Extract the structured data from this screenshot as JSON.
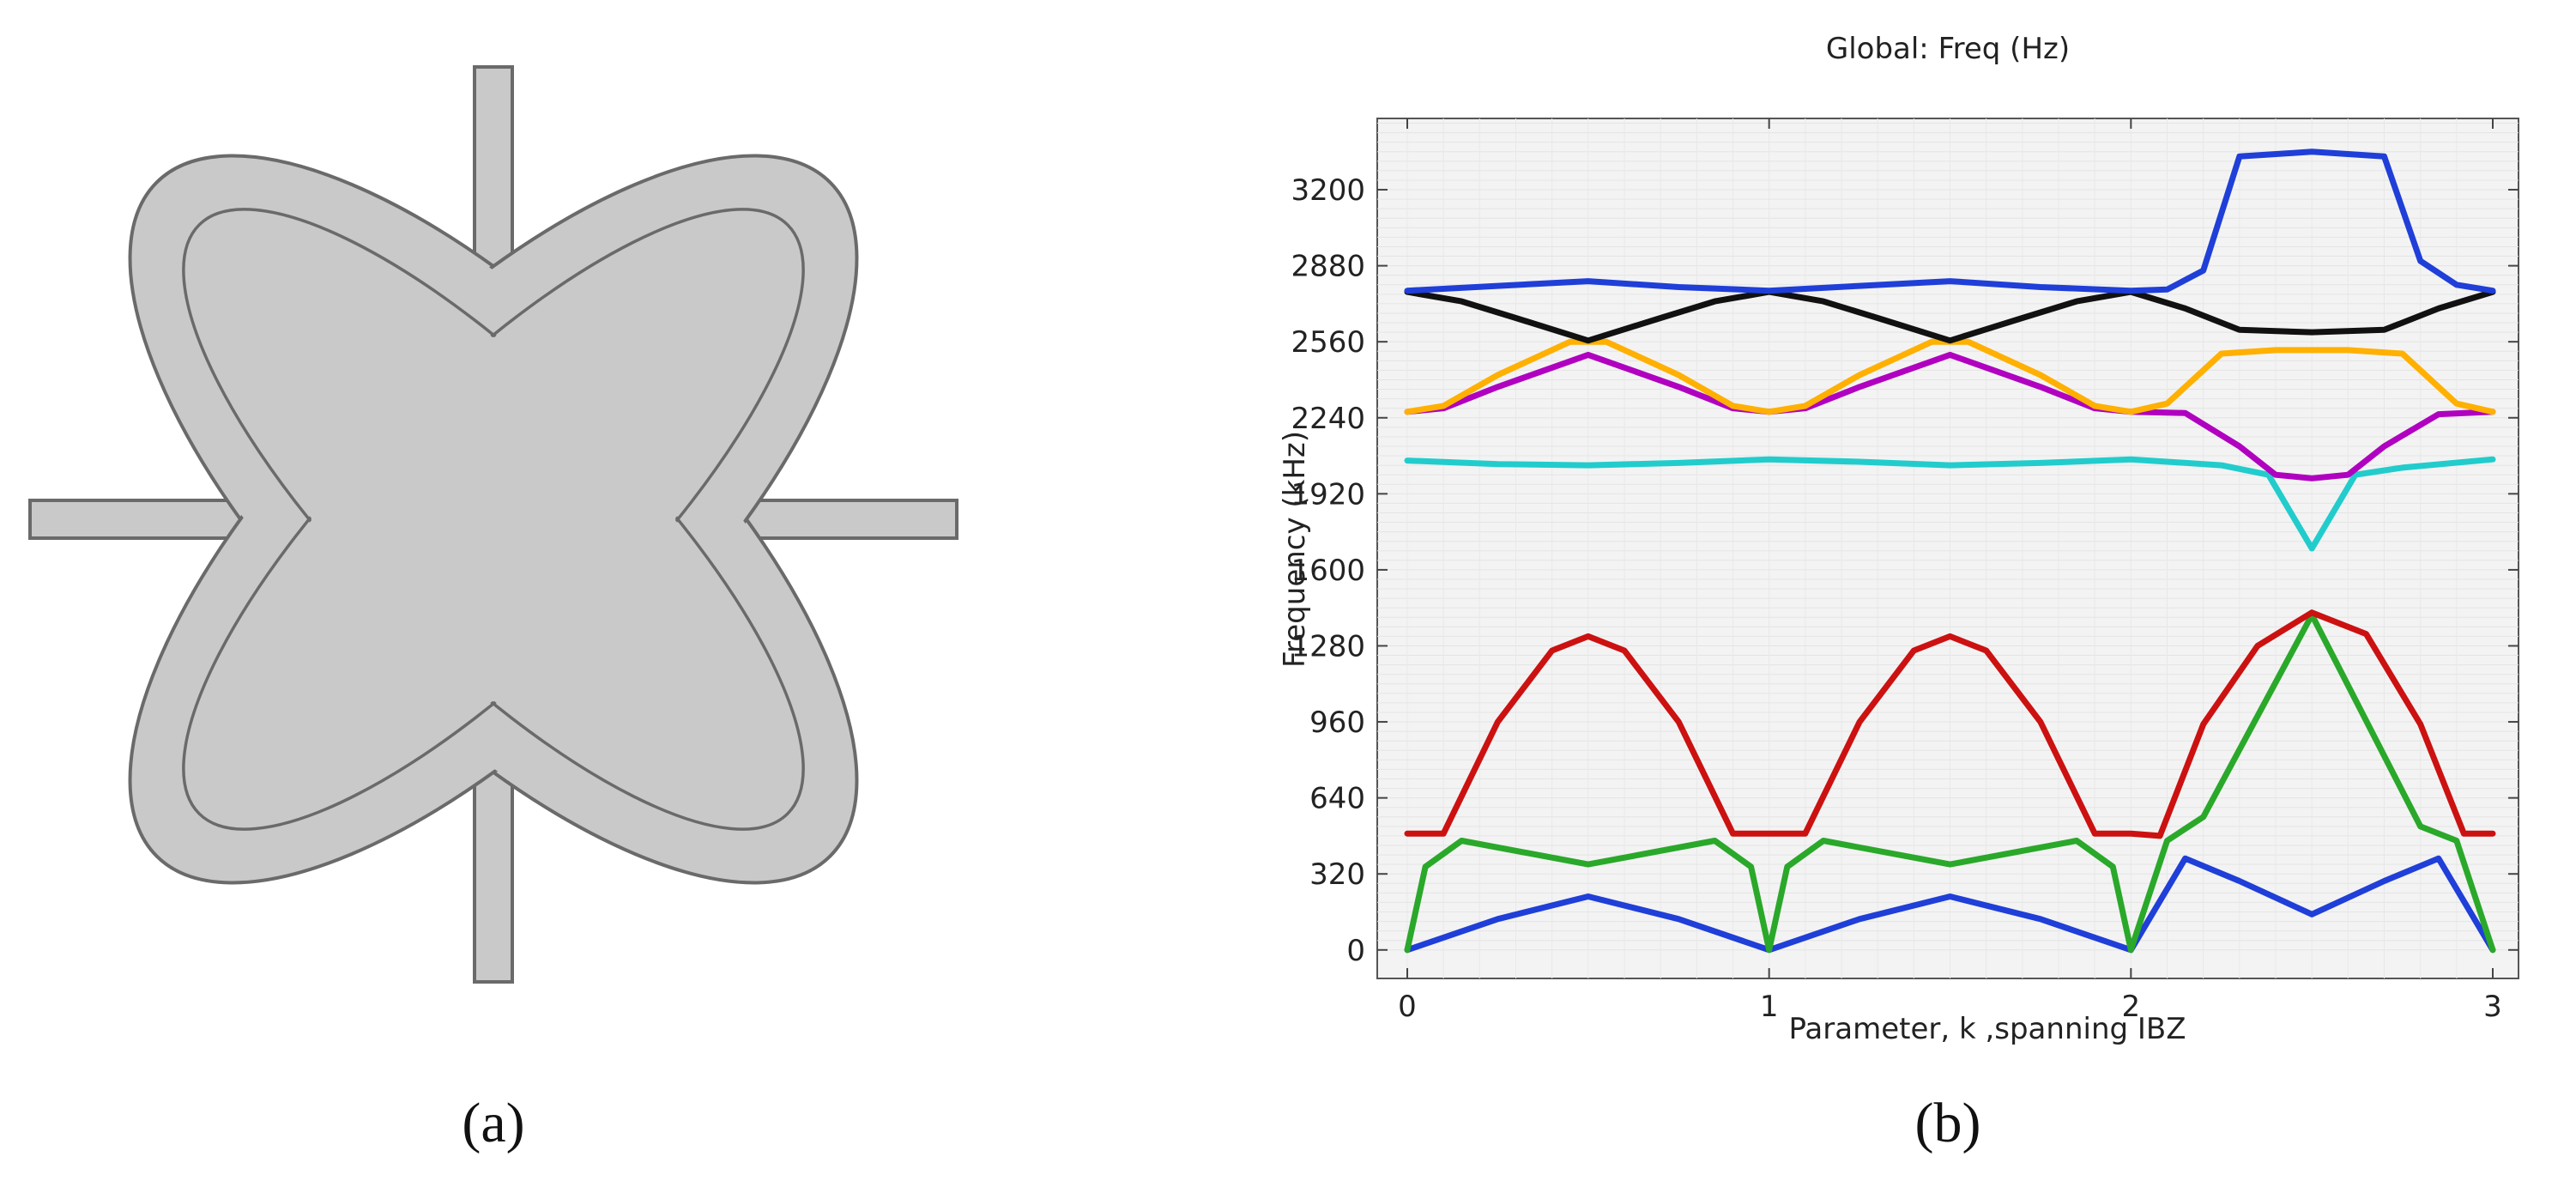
{
  "panels": {
    "a_label": "(a)",
    "b_label": "(b)"
  },
  "shape": {
    "fill_color": "#c9c9c9",
    "outline_color": "#6a6a6a"
  },
  "chart_data": {
    "type": "line",
    "title": "Global: Freq (Hz)",
    "xlabel": "Parameter, k ,spanning IBZ",
    "ylabel": "Frequency (kHz)",
    "xlim": [
      0,
      3
    ],
    "ylim": [
      -120,
      3500
    ],
    "xticks": [
      0,
      1,
      2,
      3
    ],
    "yticks": [
      0,
      320,
      640,
      960,
      1280,
      1600,
      1920,
      2240,
      2560,
      2880,
      3200
    ],
    "grid": true,
    "legend": "none",
    "series": [
      {
        "color": "#1f3fd8",
        "points": [
          [
            0,
            0
          ],
          [
            0.25,
            130
          ],
          [
            0.5,
            225
          ],
          [
            0.75,
            130
          ],
          [
            1,
            0
          ],
          [
            1.25,
            130
          ],
          [
            1.5,
            225
          ],
          [
            1.75,
            130
          ],
          [
            2,
            0
          ],
          [
            2.15,
            385
          ],
          [
            2.3,
            290
          ],
          [
            2.5,
            150
          ],
          [
            2.7,
            290
          ],
          [
            2.85,
            385
          ],
          [
            3,
            0
          ]
        ]
      },
      {
        "color": "#2aa82a",
        "points": [
          [
            0,
            0
          ],
          [
            0.05,
            350
          ],
          [
            0.15,
            460
          ],
          [
            0.5,
            360
          ],
          [
            0.85,
            460
          ],
          [
            0.95,
            350
          ],
          [
            1,
            0
          ],
          [
            1.05,
            350
          ],
          [
            1.15,
            460
          ],
          [
            1.5,
            360
          ],
          [
            1.85,
            460
          ],
          [
            1.95,
            350
          ],
          [
            2,
            0
          ],
          [
            2.1,
            460
          ],
          [
            2.2,
            560
          ],
          [
            2.5,
            1410
          ],
          [
            2.8,
            520
          ],
          [
            2.9,
            460
          ],
          [
            3,
            0
          ]
        ]
      },
      {
        "color": "#cc1111",
        "points": [
          [
            0,
            490
          ],
          [
            0.1,
            490
          ],
          [
            0.25,
            960
          ],
          [
            0.4,
            1260
          ],
          [
            0.5,
            1320
          ],
          [
            0.6,
            1260
          ],
          [
            0.75,
            960
          ],
          [
            0.9,
            490
          ],
          [
            1,
            490
          ],
          [
            1.1,
            490
          ],
          [
            1.25,
            960
          ],
          [
            1.4,
            1260
          ],
          [
            1.5,
            1320
          ],
          [
            1.6,
            1260
          ],
          [
            1.75,
            960
          ],
          [
            1.9,
            490
          ],
          [
            2,
            490
          ],
          [
            2.08,
            480
          ],
          [
            2.2,
            950
          ],
          [
            2.35,
            1280
          ],
          [
            2.5,
            1420
          ],
          [
            2.65,
            1330
          ],
          [
            2.8,
            950
          ],
          [
            2.92,
            490
          ],
          [
            3,
            490
          ]
        ]
      },
      {
        "color": "#22cccc",
        "points": [
          [
            0,
            2060
          ],
          [
            0.25,
            2045
          ],
          [
            0.5,
            2040
          ],
          [
            0.75,
            2050
          ],
          [
            1,
            2065
          ],
          [
            1.25,
            2055
          ],
          [
            1.5,
            2040
          ],
          [
            1.75,
            2050
          ],
          [
            2,
            2065
          ],
          [
            2.25,
            2040
          ],
          [
            2.38,
            2000
          ],
          [
            2.5,
            1690
          ],
          [
            2.62,
            2000
          ],
          [
            2.75,
            2030
          ],
          [
            3,
            2065
          ]
        ]
      },
      {
        "color": "#b000c0",
        "points": [
          [
            0,
            2265
          ],
          [
            0.1,
            2280
          ],
          [
            0.25,
            2370
          ],
          [
            0.5,
            2505
          ],
          [
            0.75,
            2370
          ],
          [
            0.9,
            2280
          ],
          [
            1,
            2265
          ],
          [
            1.1,
            2280
          ],
          [
            1.25,
            2370
          ],
          [
            1.5,
            2505
          ],
          [
            1.75,
            2370
          ],
          [
            1.9,
            2280
          ],
          [
            2,
            2265
          ],
          [
            2.15,
            2260
          ],
          [
            2.3,
            2120
          ],
          [
            2.4,
            2000
          ],
          [
            2.5,
            1985
          ],
          [
            2.6,
            2000
          ],
          [
            2.7,
            2120
          ],
          [
            2.85,
            2255
          ],
          [
            3,
            2265
          ]
        ]
      },
      {
        "color": "#ffb000",
        "points": [
          [
            0,
            2265
          ],
          [
            0.1,
            2290
          ],
          [
            0.25,
            2420
          ],
          [
            0.45,
            2560
          ],
          [
            0.55,
            2560
          ],
          [
            0.75,
            2420
          ],
          [
            0.9,
            2290
          ],
          [
            1,
            2265
          ],
          [
            1.1,
            2290
          ],
          [
            1.25,
            2420
          ],
          [
            1.45,
            2560
          ],
          [
            1.55,
            2560
          ],
          [
            1.75,
            2420
          ],
          [
            1.9,
            2290
          ],
          [
            2,
            2265
          ],
          [
            2.1,
            2300
          ],
          [
            2.25,
            2510
          ],
          [
            2.4,
            2525
          ],
          [
            2.6,
            2525
          ],
          [
            2.75,
            2510
          ],
          [
            2.9,
            2300
          ],
          [
            3,
            2265
          ]
        ]
      },
      {
        "color": "#111111",
        "points": [
          [
            0,
            2770
          ],
          [
            0.15,
            2730
          ],
          [
            0.3,
            2660
          ],
          [
            0.5,
            2565
          ],
          [
            0.7,
            2660
          ],
          [
            0.85,
            2730
          ],
          [
            1,
            2770
          ],
          [
            1.15,
            2730
          ],
          [
            1.3,
            2660
          ],
          [
            1.5,
            2565
          ],
          [
            1.7,
            2660
          ],
          [
            1.85,
            2730
          ],
          [
            2,
            2770
          ],
          [
            2.15,
            2700
          ],
          [
            2.3,
            2610
          ],
          [
            2.5,
            2600
          ],
          [
            2.7,
            2610
          ],
          [
            2.85,
            2700
          ],
          [
            3,
            2770
          ]
        ]
      },
      {
        "color": "#1f3fd8",
        "points": [
          [
            0,
            2775
          ],
          [
            0.25,
            2795
          ],
          [
            0.5,
            2815
          ],
          [
            0.75,
            2790
          ],
          [
            1,
            2775
          ],
          [
            1.25,
            2795
          ],
          [
            1.5,
            2815
          ],
          [
            1.75,
            2790
          ],
          [
            2,
            2775
          ],
          [
            2.1,
            2780
          ],
          [
            2.2,
            2860
          ],
          [
            2.3,
            3340
          ],
          [
            2.5,
            3360
          ],
          [
            2.7,
            3340
          ],
          [
            2.8,
            2900
          ],
          [
            2.9,
            2800
          ],
          [
            3,
            2775
          ]
        ]
      }
    ]
  }
}
